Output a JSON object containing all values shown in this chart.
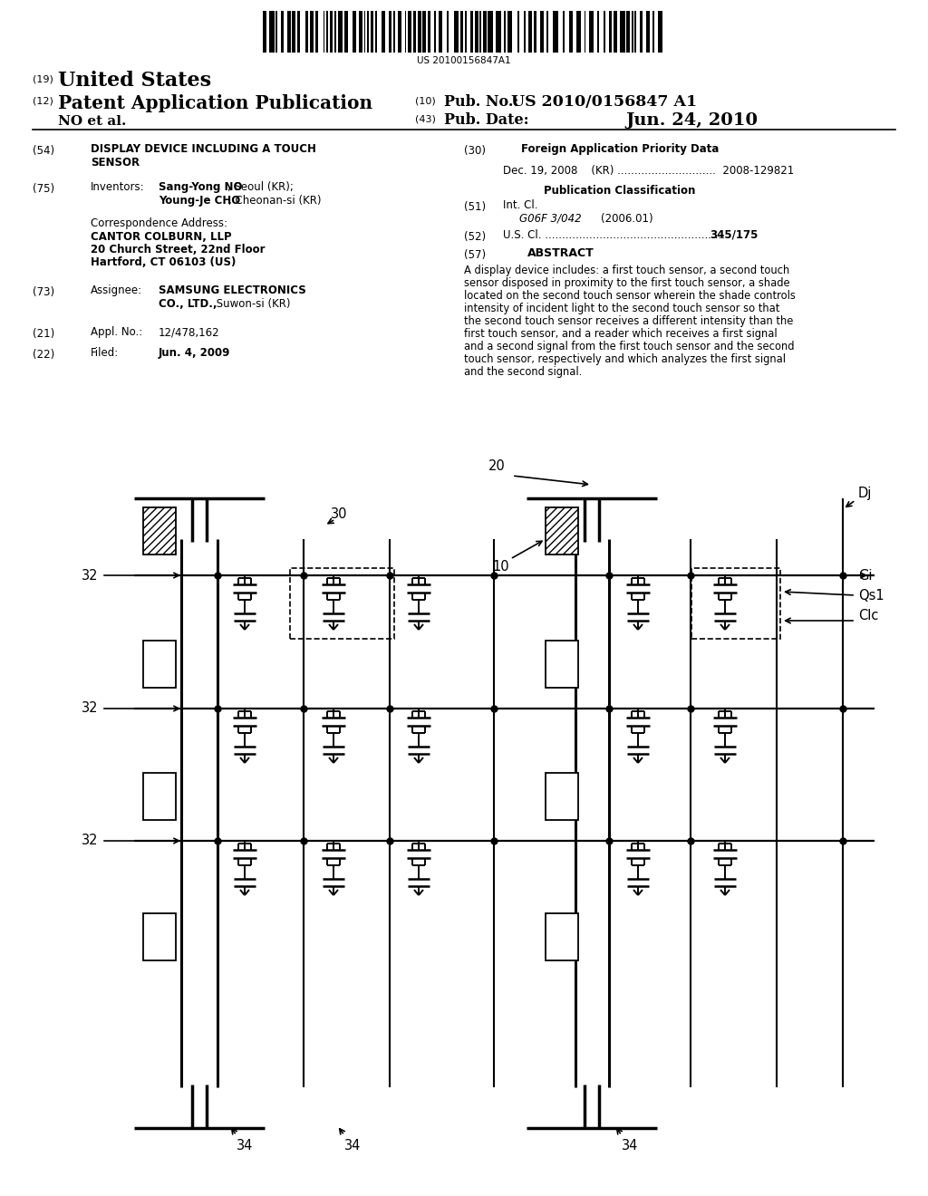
{
  "background_color": "#ffffff",
  "barcode_text": "US 20100156847A1",
  "title19": "United States",
  "title12": "Patent Application Publication",
  "pub_no_label": "(10) Pub. No.:",
  "pub_no": "US 2010/0156847 A1",
  "applicant": "NO et al.",
  "pub_date_label": "(43) Pub. Date:",
  "pub_date": "Jun. 24, 2010",
  "f54": "(54)",
  "f54t": "DISPLAY DEVICE INCLUDING A TOUCH SENSOR",
  "f75": "(75)",
  "inv_label": "Inventors:",
  "inv1_bold": "Sang-Yong NO",
  "inv1_rest": ", Seoul (KR);",
  "inv2_bold": "Young-Je CHO",
  "inv2_rest": ", Cheonan-si (KR)",
  "corr": "Correspondence Address:",
  "corr1": "CANTOR COLBURN, LLP",
  "corr2": "20 Church Street, 22nd Floor",
  "corr3": "Hartford, CT 06103 (US)",
  "f73": "(73)",
  "ass_label": "Assignee:",
  "ass1_bold": "SAMSUNG ELECTRONICS",
  "ass2_bold": "CO., LTD.,",
  "ass2_rest": " Suwon-si (KR)",
  "f21": "(21)",
  "appl_label": "Appl. No.:",
  "appl_no": "12/478,162",
  "f22": "(22)",
  "filed_label": "Filed:",
  "filed_date": "Jun. 4, 2009",
  "f30": "(30)",
  "f30t": "Foreign Application Priority Data",
  "f30c": "Dec. 19, 2008    (KR) ............................. 2008-129821",
  "pub_class": "Publication Classification",
  "f51": "(51)",
  "intcl": "Int. Cl.",
  "intcl_code": "G06F 3/042",
  "intcl_year": "(2006.01)",
  "f52": "(52)",
  "uscl": "U.S. Cl. ..................................................... 345/175",
  "f57": "(57)",
  "abstract_title": "ABSTRACT",
  "abstract": "A display device includes: a first touch sensor, a second touch sensor disposed in proximity to the first touch sensor, a shade located on the second touch sensor wherein the shade controls intensity of incident light to the second touch sensor so that the second touch sensor receives a different intensity than the first touch sensor, and a reader which receives a first signal and a second signal from the first touch sensor and the second touch sensor, respectively and which analyzes the first signal and the second signal."
}
